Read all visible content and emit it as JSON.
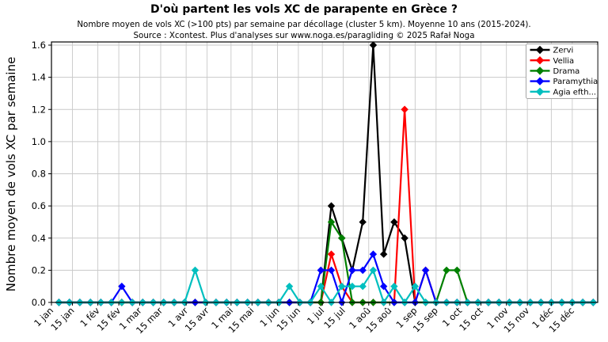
{
  "chart_data": {
    "type": "line",
    "title": "D'où partent les vols XC de parapente en Grèce ?",
    "subtitle": "Nombre moyen de vols XC (>100 pts) par semaine par décollage (cluster 5 km). Moyenne 10 ans (2015-2024).",
    "source": "Source : Xcontest. Plus d'analyses sur www.noga.es/paragliding © 2025 Rafał Noga",
    "ylabel": "Nombre moyen de vols XC par semaine",
    "ylim": [
      0,
      1.6
    ],
    "ytick_labels": [
      "0.0",
      "0.2",
      "0.4",
      "0.6",
      "0.8",
      "1.0",
      "1.2",
      "1.4",
      "1.6"
    ],
    "grid": true,
    "legend_position": "top-right",
    "x_unit": "52 weekly points (weeks of year)",
    "xticks": [
      {
        "label": "1 jan",
        "day": 0
      },
      {
        "label": "15 jan",
        "day": 14
      },
      {
        "label": "1 fév",
        "day": 31
      },
      {
        "label": "15 fév",
        "day": 45
      },
      {
        "label": "1 mar",
        "day": 59
      },
      {
        "label": "15 mar",
        "day": 73
      },
      {
        "label": "1 avr",
        "day": 90
      },
      {
        "label": "15 avr",
        "day": 104
      },
      {
        "label": "1 mai",
        "day": 120
      },
      {
        "label": "15 mai",
        "day": 134
      },
      {
        "label": "1 jun",
        "day": 151
      },
      {
        "label": "15 jun",
        "day": 165
      },
      {
        "label": "1 jul",
        "day": 181
      },
      {
        "label": "15 jul",
        "day": 195
      },
      {
        "label": "1 aoû",
        "day": 212
      },
      {
        "label": "15 aoû",
        "day": 226
      },
      {
        "label": "1 sep",
        "day": 243
      },
      {
        "label": "15 sep",
        "day": 257
      },
      {
        "label": "1 oct",
        "day": 273
      },
      {
        "label": "15 oct",
        "day": 287
      },
      {
        "label": "1 nov",
        "day": 304
      },
      {
        "label": "15 nov",
        "day": 318
      },
      {
        "label": "1 déc",
        "day": 334
      },
      {
        "label": "15 déc",
        "day": 348
      }
    ],
    "series": [
      {
        "name": "Zervi",
        "color": "#000000",
        "values": [
          0,
          0,
          0,
          0,
          0,
          0,
          0,
          0,
          0,
          0,
          0,
          0,
          0,
          0,
          0,
          0,
          0,
          0,
          0,
          0,
          0,
          0,
          0,
          0,
          0,
          0,
          0.6,
          0.4,
          0.2,
          0.5,
          1.6,
          0.3,
          0.5,
          0.4,
          0,
          0,
          0,
          0,
          0,
          0,
          0,
          0,
          0,
          0,
          0,
          0,
          0,
          0,
          0,
          0,
          0,
          0
        ]
      },
      {
        "name": "Vellia",
        "color": "#ff0000",
        "values": [
          0,
          0,
          0,
          0,
          0,
          0,
          0,
          0,
          0,
          0,
          0,
          0,
          0,
          0,
          0,
          0,
          0,
          0,
          0,
          0,
          0,
          0,
          0,
          0,
          0,
          0,
          0.3,
          0.1,
          0,
          0,
          0,
          0,
          0,
          1.2,
          0,
          0.2,
          0,
          0,
          0,
          0,
          0,
          0,
          0,
          0,
          0,
          0,
          0,
          0,
          0,
          0,
          0,
          0
        ]
      },
      {
        "name": "Drama",
        "color": "#008000",
        "values": [
          0,
          0,
          0,
          0,
          0,
          0,
          0,
          0,
          0,
          0,
          0,
          0,
          0,
          0,
          0,
          0,
          0,
          0,
          0,
          0,
          0,
          0,
          0,
          0,
          0,
          0,
          0.5,
          0.4,
          0,
          0,
          0,
          0,
          0,
          0,
          0,
          0,
          0,
          0.2,
          0.2,
          0,
          0,
          0,
          0,
          0,
          0,
          0,
          0,
          0,
          0,
          0,
          0,
          0
        ]
      },
      {
        "name": "Paramythia",
        "color": "#0000ff",
        "values": [
          0,
          0,
          0,
          0,
          0,
          0,
          0.1,
          0,
          0,
          0,
          0,
          0,
          0,
          0,
          0,
          0,
          0,
          0,
          0,
          0,
          0,
          0,
          0,
          0,
          0,
          0.2,
          0.2,
          0,
          0.2,
          0.2,
          0.3,
          0.1,
          0,
          0,
          0,
          0.2,
          0,
          0,
          0,
          0,
          0,
          0,
          0,
          0,
          0,
          0,
          0,
          0,
          0,
          0,
          0,
          0
        ]
      },
      {
        "name": "Agia efth...",
        "color": "#00bfbf",
        "values": [
          0,
          0,
          0,
          0,
          0,
          0,
          0,
          0,
          0,
          0,
          0,
          0,
          0,
          0.2,
          0,
          0,
          0,
          0,
          0,
          0,
          0,
          0,
          0.1,
          0,
          0,
          0.1,
          0,
          0.1,
          0.1,
          0.1,
          0.2,
          0,
          0.1,
          0,
          0.1,
          0,
          0,
          0,
          0,
          0,
          0,
          0,
          0,
          0,
          0,
          0,
          0,
          0,
          0,
          0,
          0,
          0
        ]
      }
    ],
    "style": {
      "grid_color": "#c9c9c9",
      "spine_color": "#000000",
      "background": "#ffffff",
      "legend_border": "#a6a6a6",
      "marker": "diamond"
    }
  }
}
